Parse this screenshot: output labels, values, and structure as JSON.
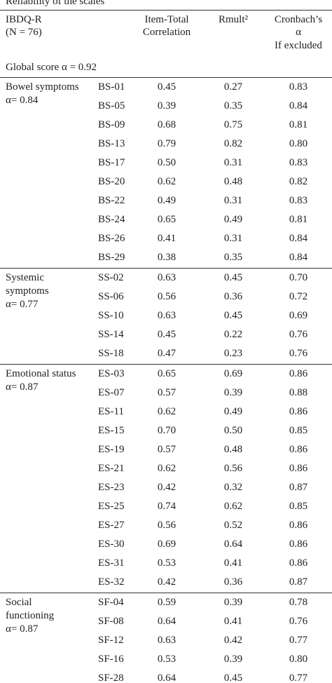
{
  "table": {
    "caption": "Reliability of the scales",
    "header": {
      "scale": [
        "IBDQ-R",
        "(N = 76)"
      ],
      "item_total": [
        "Item-Total",
        "Correlation"
      ],
      "rmult": [
        "Rmult²"
      ],
      "alpha": [
        "Cronbach’s",
        "α",
        "If excluded"
      ]
    },
    "global": "Global score α = 0.92",
    "groups": [
      {
        "label": [
          "Bowel symptoms",
          " α= 0.84"
        ],
        "rows": [
          [
            "BS-01",
            "0.45",
            "0.27",
            "0.83"
          ],
          [
            "BS-05",
            "0.39",
            "0.35",
            "0.84"
          ],
          [
            "BS-09",
            "0.68",
            "0.75",
            "0.81"
          ],
          [
            "BS-13",
            "0.79",
            "0.82",
            "0.80"
          ],
          [
            "BS-17",
            "0.50",
            "0.31",
            "0.83"
          ],
          [
            "BS-20",
            "0.62",
            "0.48",
            "0.82"
          ],
          [
            "BS-22",
            "0.49",
            "0.31",
            "0.83"
          ],
          [
            "BS-24",
            "0.65",
            "0.49",
            "0.81"
          ],
          [
            "BS-26",
            "0.41",
            "0.31",
            "0.84"
          ],
          [
            "BS-29",
            "0.38",
            "0.35",
            "0.84"
          ]
        ]
      },
      {
        "label": [
          "Systemic",
          "symptoms",
          "α= 0.77"
        ],
        "rows": [
          [
            "SS-02",
            "0.63",
            "0.45",
            "0.70"
          ],
          [
            "SS-06",
            "0.56",
            "0.36",
            "0.72"
          ],
          [
            "SS-10",
            "0.63",
            "0.45",
            "0.69"
          ],
          [
            "SS-14",
            "0.45",
            "0.22",
            "0.76"
          ],
          [
            "SS-18",
            "0.47",
            "0.23",
            "0.76"
          ]
        ]
      },
      {
        "label": [
          "Emotional status",
          "α= 0.87"
        ],
        "rows": [
          [
            "ES-03",
            "0.65",
            "0.69",
            "0.86"
          ],
          [
            "ES-07",
            "0.57",
            "0.39",
            "0.88"
          ],
          [
            "ES-11",
            "0.62",
            "0.49",
            "0.86"
          ],
          [
            "ES-15",
            "0.70",
            "0.50",
            "0.85"
          ],
          [
            "ES-19",
            "0.57",
            "0.48",
            "0.86"
          ],
          [
            "ES-21",
            "0.62",
            "0.56",
            "0.86"
          ],
          [
            "ES-23",
            "0.42",
            "0.32",
            "0.87"
          ],
          [
            "ES-25",
            "0.74",
            "0.62",
            "0.85"
          ],
          [
            "ES-27",
            "0.56",
            "0.52",
            "0.86"
          ],
          [
            "ES-30",
            "0.69",
            "0.64",
            "0.86"
          ],
          [
            "ES-31",
            "0.53",
            "0.41",
            "0.86"
          ],
          [
            "ES-32",
            "0.42",
            "0.36",
            "0.87"
          ]
        ]
      },
      {
        "label": [
          "Social",
          "functioning",
          "α= 0.87"
        ],
        "rows": [
          [
            "SF-04",
            "0.59",
            "0.39",
            "0.78"
          ],
          [
            "SF-08",
            "0.64",
            "0.41",
            "0.76"
          ],
          [
            "SF-12",
            "0.63",
            "0.42",
            "0.77"
          ],
          [
            "SF-16",
            "0.53",
            "0.39",
            "0.80"
          ],
          [
            "SF-28",
            "0.64",
            "0.45",
            "0.77"
          ]
        ]
      }
    ]
  }
}
